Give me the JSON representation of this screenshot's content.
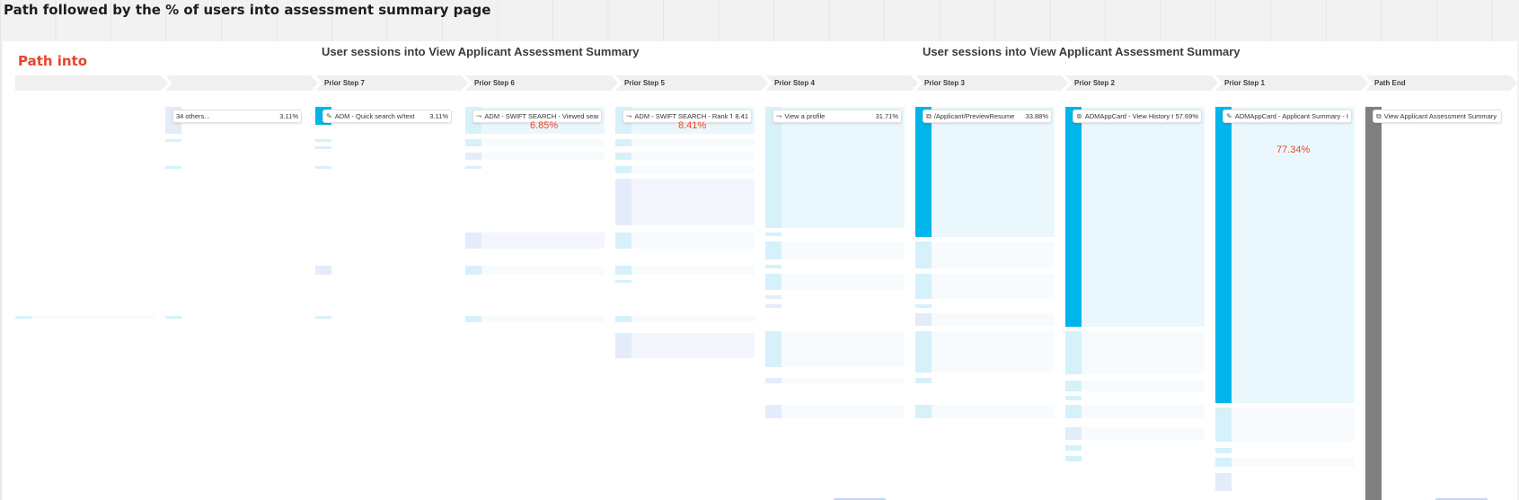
{
  "page": {
    "title": "Path followed by the % of users into assessment summary page",
    "subtitle": "Path into"
  },
  "sections": [
    {
      "title": "User sessions into View Applicant Assessment Summary"
    },
    {
      "title": "User sessions into View Applicant Assessment Summary"
    }
  ],
  "steps": [
    {
      "header": "",
      "card": null
    },
    {
      "header": "",
      "card": {
        "icon": "",
        "label": "34 others...",
        "pct": "3.11%"
      }
    },
    {
      "header": "Prior Step 7",
      "card": {
        "icon": "pencil-icon",
        "label": "ADM - Quick search w/text",
        "pct": "3.11%"
      }
    },
    {
      "header": "Prior Step 6",
      "card": {
        "icon": "route-icon",
        "label": "ADM - SWIFT SEARCH - Viewed search r",
        "pct": ""
      }
    },
    {
      "header": "Prior Step 5",
      "card": {
        "icon": "route-icon",
        "label": "ADM - SWIFT SEARCH - Rank Top 5",
        "pct": "8.41"
      }
    },
    {
      "header": "Prior Step 4",
      "card": {
        "icon": "route-icon",
        "label": "View a profile",
        "pct": "31.71%"
      }
    },
    {
      "header": "Prior Step 3",
      "card": {
        "icon": "pageview-icon",
        "label": "/Applicant/PreviewResume",
        "pct": "33.88%"
      }
    },
    {
      "header": "Prior Step 2",
      "card": {
        "icon": "click-icon",
        "label": "ADMAppCard - View History tab",
        "pct": "57.69%"
      }
    },
    {
      "header": "Prior Step 1",
      "card": {
        "icon": "pencil-icon",
        "label": "ADMAppCard - Applicant Summary - Iter",
        "pct": ""
      }
    },
    {
      "header": "Path End",
      "card": {
        "icon": "pageview-icon",
        "label": "View Applicant Assessment Summary",
        "pct": ""
      }
    }
  ],
  "annotations": {
    "prior6": "6.85%",
    "prior5": "8.41%",
    "prior1": "77.34%"
  },
  "icons": {
    "pencil-icon": "✎",
    "route-icon": "⤳",
    "pageview-icon": "⧉",
    "click-icon": "⊛"
  },
  "colors": {
    "primary": "#00b5e9",
    "light": "#d6f1fa",
    "annotation": "#e8452c",
    "end": "#808080"
  }
}
